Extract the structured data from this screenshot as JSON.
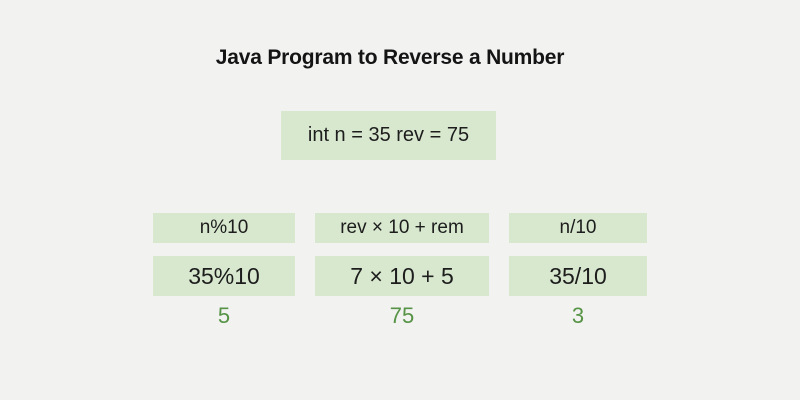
{
  "title": "Java Program to Reverse a Number",
  "initialization": {
    "text": "int n = 35 rev = 75"
  },
  "steps": {
    "columns": [
      {
        "formula": "n%10",
        "substitution": "35%10",
        "result": "5"
      },
      {
        "formula": "rev × 10 + rem",
        "substitution": "7 × 10 + 5",
        "result": "75"
      },
      {
        "formula": "n/10",
        "substitution": "35/10",
        "result": "3"
      }
    ]
  },
  "colors": {
    "background": "#f2f2f1",
    "box_fill": "#d7e8ce",
    "text": "#1d1d1d",
    "result_green": "#569345"
  }
}
